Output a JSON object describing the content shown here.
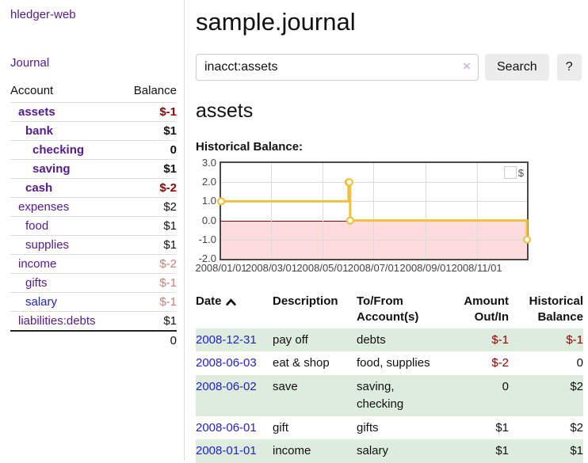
{
  "sidebar": {
    "app_title": "hledger-web",
    "journal_link": "Journal",
    "accounts_header": {
      "account": "Account",
      "balance": "Balance"
    },
    "accounts": [
      {
        "name": "assets",
        "level": 1,
        "bold": true,
        "name_color": "purple",
        "balance": "$-1",
        "balance_color": "neg"
      },
      {
        "name": "bank",
        "level": 2,
        "bold": true,
        "name_color": "purple",
        "balance": "$1",
        "balance_color": ""
      },
      {
        "name": "checking",
        "level": 3,
        "bold": true,
        "name_color": "purple",
        "balance": "0",
        "balance_color": ""
      },
      {
        "name": "saving",
        "level": 3,
        "bold": true,
        "name_color": "purple",
        "balance": "$1",
        "balance_color": ""
      },
      {
        "name": "cash",
        "level": 2,
        "bold": true,
        "name_color": "purple",
        "balance": "$-2",
        "balance_color": "neg"
      },
      {
        "name": "expenses",
        "level": 1,
        "bold": false,
        "name_color": "purple",
        "balance": "$2",
        "balance_color": ""
      },
      {
        "name": "food",
        "level": 2,
        "bold": false,
        "name_color": "purple",
        "balance": "$1",
        "balance_color": ""
      },
      {
        "name": "supplies",
        "level": 2,
        "bold": false,
        "name_color": "purple",
        "balance": "$1",
        "balance_color": ""
      },
      {
        "name": "income",
        "level": 1,
        "bold": false,
        "name_color": "purple",
        "balance": "$-2",
        "balance_color": "negmuted"
      },
      {
        "name": "gifts",
        "level": 2,
        "bold": false,
        "name_color": "purple",
        "balance": "$-1",
        "balance_color": "negmuted"
      },
      {
        "name": "salary",
        "level": 2,
        "bold": false,
        "name_color": "blue",
        "balance": "$-1",
        "balance_color": "negmuted"
      },
      {
        "name": "liabilities:debts",
        "level": 1,
        "bold": false,
        "name_color": "purple",
        "balance": "$1",
        "balance_color": ""
      }
    ],
    "total": "0"
  },
  "main": {
    "title": "sample.journal",
    "search": {
      "value": "inacct:assets",
      "clear_icon": "×",
      "search_button": "Search",
      "help_button": "?"
    },
    "account_heading": "assets",
    "chart_label": "Historical Balance:",
    "table": {
      "headers": {
        "date": "Date",
        "description": "Description",
        "accounts": "To/From Account(s)",
        "amount": "Amount Out/In",
        "balance": "Historical Balance"
      },
      "rows": [
        {
          "date": "2008-12-31",
          "description": "pay off",
          "accounts": "debts",
          "amount": "$-1",
          "amount_neg": true,
          "balance": "$-1",
          "balance_neg": true,
          "shaded": true
        },
        {
          "date": "2008-06-03",
          "description": "eat & shop",
          "accounts": "food, supplies",
          "amount": "$-2",
          "amount_neg": true,
          "balance": "0",
          "balance_neg": false,
          "shaded": false
        },
        {
          "date": "2008-06-02",
          "description": "save",
          "accounts": "saving, checking",
          "amount": "0",
          "amount_neg": false,
          "balance": "$2",
          "balance_neg": false,
          "shaded": true
        },
        {
          "date": "2008-06-01",
          "description": "gift",
          "accounts": "gifts",
          "amount": "$1",
          "amount_neg": false,
          "balance": "$2",
          "balance_neg": false,
          "shaded": false
        },
        {
          "date": "2008-01-01",
          "description": "income",
          "accounts": "salary",
          "amount": "$1",
          "amount_neg": false,
          "balance": "$1",
          "balance_neg": false,
          "shaded": true
        }
      ]
    }
  },
  "chart_data": {
    "type": "line",
    "style": "step",
    "title": "Historical Balance:",
    "series": [
      {
        "name": "$",
        "color": "#edc240",
        "points": [
          [
            "2008-01-01",
            1
          ],
          [
            "2008-06-01",
            2
          ],
          [
            "2008-06-02",
            2
          ],
          [
            "2008-06-03",
            0
          ],
          [
            "2008-12-31",
            -1
          ]
        ]
      }
    ],
    "x_range": [
      "2008-01-01",
      "2008-12-31"
    ],
    "xticks": [
      "2008/01/01",
      "2008/03/01",
      "2008/05/01",
      "2008/07/01",
      "2008/09/01",
      "2008/11/01"
    ],
    "yticks": [
      "3.0",
      "2.0",
      "1.0",
      "0.0",
      "-1.0",
      "-2.0"
    ],
    "ylim": [
      -2,
      3
    ],
    "grid": true,
    "legend_position": "top-right",
    "colors": {
      "line": "#edc240",
      "marker_fill": "#ffffff",
      "negative_region": "#fcdcdc",
      "zero_line": "#8b0000",
      "gridline": "#dcdcdc",
      "border": "#4a4a4a"
    }
  }
}
